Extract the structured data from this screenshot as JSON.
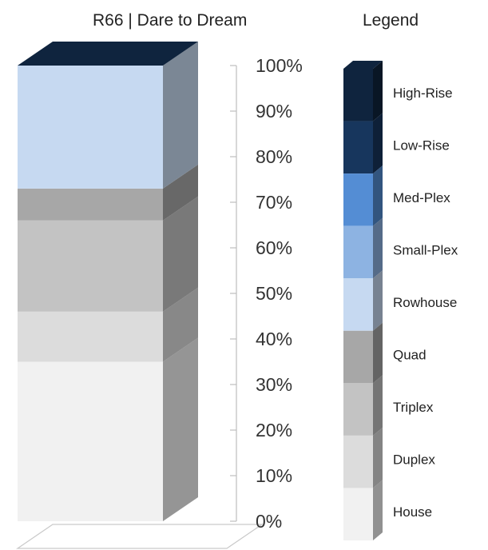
{
  "header": {
    "title": "R66 | Dare to Dream",
    "legend_title": "Legend"
  },
  "colors": {
    "House": "#f1f1f1",
    "Duplex": "#dcdcdc",
    "Triplex": "#c3c3c3",
    "Quad": "#a7a7a7",
    "Rowhouse": "#c6d9f1",
    "Small-Plex": "#8db3e2",
    "Med-Plex": "#548dd4",
    "Low-Rise": "#17365d",
    "High-Rise": "#0f243e"
  },
  "chart_data": {
    "type": "bar",
    "stacked": true,
    "title": "R66 | Dare to Dream",
    "xlabel": "",
    "ylabel": "",
    "ylim": [
      0,
      100
    ],
    "y_ticks": [
      "0%",
      "10%",
      "20%",
      "30%",
      "40%",
      "50%",
      "60%",
      "70%",
      "80%",
      "90%",
      "100%"
    ],
    "categories": [
      ""
    ],
    "series": [
      {
        "name": "House",
        "values": [
          35
        ]
      },
      {
        "name": "Duplex",
        "values": [
          11
        ]
      },
      {
        "name": "Triplex",
        "values": [
          20
        ]
      },
      {
        "name": "Quad",
        "values": [
          7
        ]
      },
      {
        "name": "Rowhouse",
        "values": [
          27
        ]
      },
      {
        "name": "Small-Plex",
        "values": [
          0
        ]
      },
      {
        "name": "Med-Plex",
        "values": [
          0
        ]
      },
      {
        "name": "Low-Rise",
        "values": [
          0
        ]
      },
      {
        "name": "High-Rise",
        "values": [
          0
        ]
      }
    ],
    "legend": {
      "position": "right",
      "entries": [
        "High-Rise",
        "Low-Rise",
        "Med-Plex",
        "Small-Plex",
        "Rowhouse",
        "Quad",
        "Triplex",
        "Duplex",
        "House"
      ]
    },
    "grid": false,
    "style": "3d-stacked-column"
  }
}
